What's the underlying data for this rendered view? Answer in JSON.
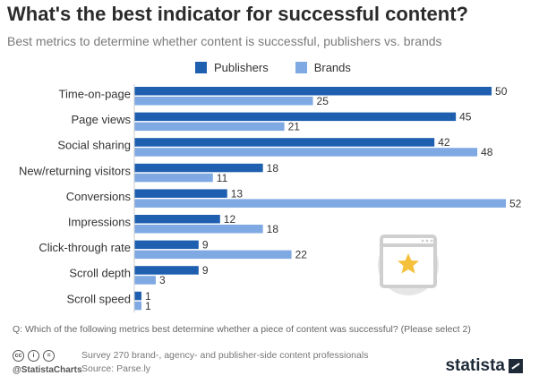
{
  "header": {
    "title": "What's the best indicator for successful content?",
    "subtitle": "Best metrics to determine whether content is successful, publishers vs. brands"
  },
  "chart_data": {
    "type": "bar",
    "orientation": "horizontal",
    "categories": [
      "Time-on-page",
      "Page views",
      "Social sharing",
      "New/returning visitors",
      "Conversions",
      "Impressions",
      "Click-through rate",
      "Scroll depth",
      "Scroll speed"
    ],
    "series": [
      {
        "name": "Publishers",
        "color": "#1f5fb0",
        "values": [
          50,
          45,
          42,
          18,
          13,
          12,
          9,
          9,
          1
        ]
      },
      {
        "name": "Brands",
        "color": "#7fa9e3",
        "values": [
          25,
          21,
          48,
          11,
          52,
          18,
          22,
          3,
          1
        ]
      }
    ],
    "xlim": [
      0,
      52
    ],
    "grid": false,
    "legend": "top"
  },
  "footer": {
    "question": "Q: Which of the following metrics best determine whether a piece of content was successful? (Please select 2)",
    "survey": "Survey 270 brand-, agency- and publisher-side content professionals",
    "source": "Source: Parse.ly",
    "handle": "@StatistaCharts",
    "brand": "statista",
    "license_icons": [
      "cc",
      "i",
      "="
    ]
  },
  "illustration": {
    "icon": "browser-window-star-icon"
  }
}
